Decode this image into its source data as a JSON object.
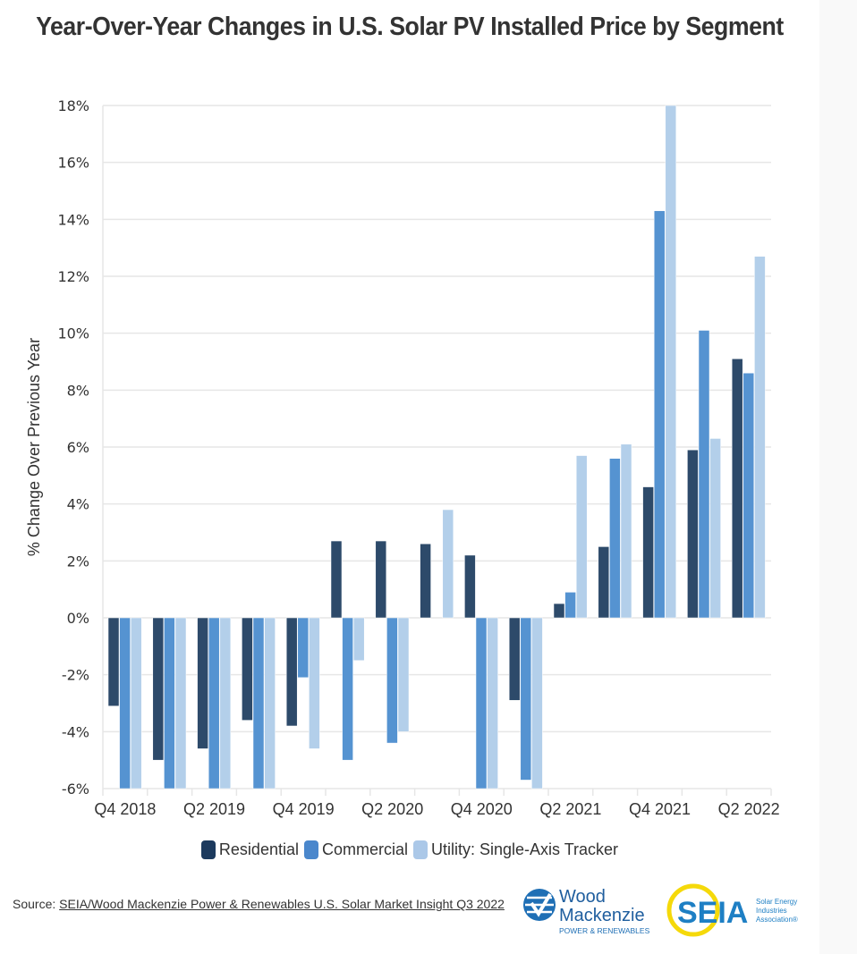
{
  "title": "Year-Over-Year Changes in U.S. Solar PV Installed Price by Segment",
  "source": {
    "prefix": "Source: ",
    "link_text": "SEIA/Wood Mackenzie Power & Renewables U.S. Solar Market Insight Q3 2022"
  },
  "logos": {
    "woodmac": {
      "line1": "Wood",
      "line2": "Mackenzie",
      "line3": "POWER & RENEWABLES"
    },
    "seia": {
      "mark": "SEIA",
      "line1": "Solar Energy",
      "line2": "Industries",
      "line3": "Association®"
    }
  },
  "colors": {
    "Residential": "#2d4a6a",
    "Commercial": "#5593d1",
    "Utility": "#b3cfea",
    "grid": "#e6e6e6"
  },
  "chart_data": {
    "type": "bar",
    "title": "Year-Over-Year Changes in U.S. Solar PV Installed Price by Segment",
    "xlabel": "",
    "ylabel": "% Change Over Previous Year",
    "ylim": [
      -6,
      18
    ],
    "yticks": [
      -6,
      -4,
      -2,
      0,
      2,
      4,
      6,
      8,
      10,
      12,
      14,
      16,
      18
    ],
    "ytick_labels": [
      "-6%",
      "-4%",
      "-2%",
      "0%",
      "2%",
      "4%",
      "6%",
      "8%",
      "10%",
      "12%",
      "14%",
      "16%",
      "18%"
    ],
    "grid": true,
    "legend_position": "bottom",
    "categories": [
      "Q4 2018",
      "Q1 2019",
      "Q2 2019",
      "Q3 2019",
      "Q4 2019",
      "Q1 2020",
      "Q2 2020",
      "Q3 2020",
      "Q4 2020",
      "Q1 2021",
      "Q2 2021",
      "Q3 2021",
      "Q4 2021",
      "Q1 2022",
      "Q2 2022"
    ],
    "xtick_labels": [
      "Q4 2018",
      "Q2 2019",
      "Q4 2019",
      "Q2 2020",
      "Q4 2020",
      "Q2 2021",
      "Q4 2021",
      "Q2 2022"
    ],
    "series": [
      {
        "name": "Residential",
        "values": [
          -3.1,
          -5.0,
          -4.6,
          -3.6,
          -3.8,
          2.7,
          2.7,
          2.6,
          2.2,
          -2.9,
          0.5,
          2.5,
          4.6,
          5.9,
          9.1
        ]
      },
      {
        "name": "Commercial",
        "values": [
          -6.0,
          -6.0,
          -6.0,
          -6.0,
          -2.1,
          -5.0,
          -4.4,
          0.0,
          -6.0,
          -5.7,
          0.9,
          5.6,
          14.3,
          10.1,
          8.6
        ]
      },
      {
        "name": "Utility: Single-Axis Tracker",
        "values": [
          -6.0,
          -6.0,
          -6.0,
          -6.0,
          -4.6,
          -1.5,
          -4.0,
          3.8,
          -6.0,
          -6.0,
          5.7,
          6.1,
          18.0,
          6.3,
          12.7
        ]
      }
    ]
  }
}
